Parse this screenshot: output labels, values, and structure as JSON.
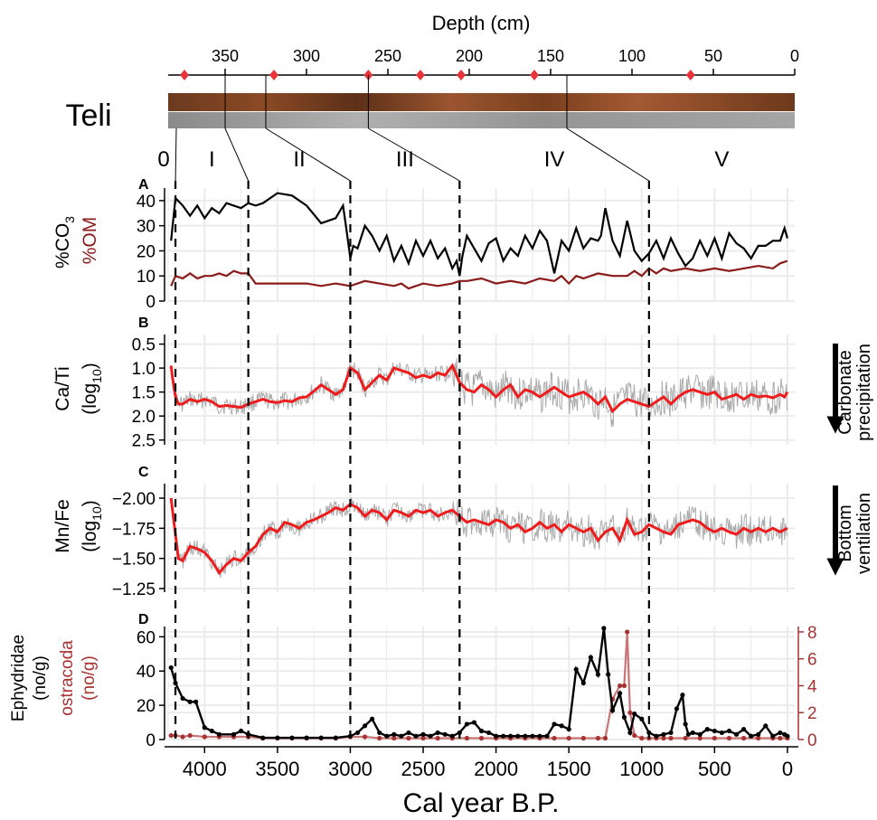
{
  "site_label": "Teli",
  "depth_axis": {
    "title": "Depth (cm)",
    "ticks": [
      350,
      300,
      250,
      200,
      150,
      100,
      50,
      0
    ],
    "min": 0,
    "max": 385
  },
  "core_samples_cm": [
    375,
    320,
    262,
    230,
    205,
    160,
    64
  ],
  "unit_boundaries_cm": [
    350,
    325,
    262,
    140
  ],
  "zones": [
    {
      "label": "0",
      "start": 4250,
      "end": 4200
    },
    {
      "label": "I",
      "start": 4200,
      "end": 3700
    },
    {
      "label": "II",
      "start": 3700,
      "end": 3000
    },
    {
      "label": "III",
      "start": 3000,
      "end": 2250
    },
    {
      "label": "IV",
      "start": 2250,
      "end": 950
    },
    {
      "label": "V",
      "start": 950,
      "end": -50
    }
  ],
  "boundaries_calbp": [
    4200,
    3700,
    3000,
    2250,
    950
  ],
  "x_axis": {
    "title": "Cal year B.P.",
    "ticks": [
      4000,
      3500,
      3000,
      2500,
      2000,
      1500,
      1000,
      500,
      0
    ],
    "min": -50,
    "max": 4250
  },
  "colors": {
    "black": "#000000",
    "dark_red": "#8b1a1a",
    "red": "#ee1c1c",
    "grey": "#aaaaaa",
    "ostracoda": "#c97575",
    "marker": "#e8333a"
  },
  "panels": {
    "A": {
      "letter": "A",
      "ylabel_1": "%CO",
      "ylabel_sub": "3",
      "ylabel_2": "%OM",
      "yticks": [
        0,
        10,
        20,
        30,
        40
      ],
      "ylim": [
        0,
        45
      ]
    },
    "B": {
      "letter": "B",
      "ylabel_1": "Ca/Ti",
      "ylabel_2": "(log",
      "ylabel_sub": "10",
      "ylabel_close": ")",
      "yticks": [
        0.5,
        1.0,
        1.5,
        2.0,
        2.5
      ],
      "ytick_labels": [
        "0.5",
        "1.0",
        "1.5",
        "2.0",
        "2.5"
      ],
      "ylim": [
        0.3,
        2.6
      ],
      "annotation_1": "Carbonate",
      "annotation_2": "precipitation"
    },
    "C": {
      "letter": "C",
      "ylabel_1": "Mn/Fe",
      "ylabel_2": "(log",
      "ylabel_sub": "10",
      "ylabel_close": ")",
      "yticks": [
        -2.0,
        -1.75,
        -1.5,
        -1.25
      ],
      "ytick_labels": [
        "−2.00",
        "−1.75",
        "−1.50",
        "−1.25"
      ],
      "ylim": [
        -2.12,
        -1.22
      ],
      "annotation_1": "Bottom",
      "annotation_2": "ventilation"
    },
    "D": {
      "letter": "D",
      "ylabel_1": "Ephydridae",
      "ylabel_2": "(no/g)",
      "ylabel_3": "ostracoda",
      "ylabel_4": "(no/g)",
      "yticks_left": [
        0,
        20,
        40,
        60
      ],
      "yticks_right": [
        0,
        2,
        4,
        6,
        8
      ],
      "ylim_left": [
        0,
        66
      ],
      "ylim_right": [
        0,
        8.4
      ]
    }
  },
  "chart_data": {
    "type": "line",
    "x_label": "Cal year B.P.",
    "series": [
      {
        "name": "%CO3",
        "panel": "A",
        "x": [
          4230,
          4200,
          4150,
          4100,
          4050,
          4000,
          3950,
          3900,
          3850,
          3800,
          3750,
          3700,
          3650,
          3600,
          3500,
          3400,
          3300,
          3200,
          3100,
          3050,
          3030,
          3000,
          2980,
          2950,
          2900,
          2850,
          2800,
          2750,
          2700,
          2650,
          2600,
          2550,
          2500,
          2450,
          2400,
          2350,
          2300,
          2270,
          2250,
          2230,
          2200,
          2150,
          2100,
          2050,
          2000,
          1950,
          1900,
          1850,
          1800,
          1750,
          1700,
          1650,
          1600,
          1550,
          1500,
          1450,
          1400,
          1350,
          1300,
          1280,
          1250,
          1200,
          1150,
          1100,
          1050,
          1000,
          950,
          900,
          850,
          800,
          750,
          700,
          650,
          600,
          550,
          500,
          450,
          400,
          350,
          300,
          250,
          200,
          150,
          100,
          50,
          20,
          0
        ],
        "y": [
          24,
          41,
          38,
          34,
          38,
          33,
          37,
          35,
          39,
          38,
          37,
          39,
          38,
          39,
          43,
          42,
          38,
          31,
          33,
          38,
          30,
          17,
          22,
          21,
          30,
          26,
          20,
          26,
          16,
          22,
          15,
          24,
          18,
          24,
          17,
          21,
          13,
          16,
          10,
          18,
          26,
          21,
          16,
          23,
          25,
          16,
          21,
          18,
          26,
          21,
          28,
          24,
          11,
          24,
          20,
          29,
          21,
          25,
          24,
          26,
          37,
          24,
          18,
          32,
          20,
          16,
          19,
          24,
          17,
          25,
          19,
          14,
          17,
          24,
          18,
          25,
          17,
          27,
          23,
          21,
          17,
          22,
          22,
          24,
          24,
          29,
          25
        ]
      },
      {
        "name": "%OM",
        "panel": "A",
        "x": [
          4230,
          4200,
          4150,
          4100,
          4050,
          4000,
          3950,
          3900,
          3850,
          3800,
          3750,
          3700,
          3650,
          3600,
          3500,
          3400,
          3300,
          3200,
          3100,
          3000,
          2950,
          2900,
          2800,
          2700,
          2650,
          2600,
          2500,
          2400,
          2300,
          2250,
          2200,
          2100,
          2000,
          1900,
          1800,
          1700,
          1600,
          1550,
          1500,
          1450,
          1400,
          1300,
          1200,
          1100,
          1050,
          1000,
          950,
          900,
          850,
          800,
          700,
          600,
          500,
          400,
          300,
          200,
          100,
          50,
          0
        ],
        "y": [
          6,
          10,
          9,
          11,
          9,
          10,
          10,
          11,
          10,
          12,
          11,
          11,
          7,
          7,
          7,
          7,
          7,
          6,
          7,
          6,
          7,
          8,
          7,
          6,
          7,
          5,
          7,
          6,
          7,
          8,
          8,
          9,
          7,
          8,
          7,
          9,
          8,
          10,
          7,
          10,
          9,
          11,
          10,
          10,
          12,
          10,
          13,
          11,
          13,
          12,
          13,
          12,
          13,
          12,
          13,
          14,
          13,
          15,
          16
        ]
      },
      {
        "name": "Ca/Ti smoothed",
        "panel": "B",
        "x": [
          4230,
          4220,
          4200,
          4180,
          4150,
          4100,
          4050,
          4000,
          3950,
          3900,
          3850,
          3800,
          3750,
          3700,
          3650,
          3600,
          3550,
          3500,
          3450,
          3400,
          3350,
          3300,
          3250,
          3200,
          3150,
          3100,
          3050,
          3000,
          2950,
          2900,
          2850,
          2800,
          2750,
          2700,
          2650,
          2600,
          2550,
          2500,
          2450,
          2400,
          2350,
          2300,
          2250,
          2200,
          2150,
          2100,
          2050,
          2000,
          1950,
          1900,
          1850,
          1800,
          1750,
          1700,
          1650,
          1600,
          1550,
          1500,
          1450,
          1400,
          1350,
          1300,
          1250,
          1200,
          1150,
          1100,
          1050,
          1000,
          950,
          900,
          850,
          800,
          750,
          700,
          650,
          600,
          550,
          500,
          450,
          400,
          350,
          300,
          250,
          200,
          150,
          100,
          50,
          20,
          0
        ],
        "y": [
          0.95,
          1.2,
          1.6,
          1.75,
          1.75,
          1.65,
          1.7,
          1.65,
          1.7,
          1.8,
          1.78,
          1.8,
          1.82,
          1.75,
          1.7,
          1.65,
          1.7,
          1.72,
          1.68,
          1.7,
          1.62,
          1.6,
          1.48,
          1.35,
          1.45,
          1.55,
          1.45,
          1.0,
          1.1,
          1.45,
          1.3,
          1.15,
          1.25,
          1.0,
          1.05,
          1.1,
          1.2,
          1.15,
          1.2,
          1.1,
          1.15,
          0.95,
          1.3,
          1.45,
          1.5,
          1.35,
          1.45,
          1.6,
          1.45,
          1.35,
          1.6,
          1.45,
          1.5,
          1.6,
          1.5,
          1.4,
          1.5,
          1.6,
          1.55,
          1.5,
          1.6,
          1.75,
          1.6,
          1.9,
          1.75,
          1.65,
          1.7,
          1.75,
          1.8,
          1.7,
          1.6,
          1.75,
          1.6,
          1.5,
          1.45,
          1.5,
          1.55,
          1.5,
          1.65,
          1.6,
          1.55,
          1.65,
          1.55,
          1.6,
          1.58,
          1.62,
          1.55,
          1.6,
          1.5
        ]
      },
      {
        "name": "Mn/Fe smoothed",
        "panel": "C",
        "x": [
          4230,
          4210,
          4180,
          4150,
          4100,
          4050,
          4000,
          3950,
          3900,
          3850,
          3800,
          3750,
          3700,
          3650,
          3600,
          3550,
          3500,
          3450,
          3400,
          3350,
          3300,
          3250,
          3200,
          3150,
          3100,
          3050,
          3000,
          2950,
          2900,
          2850,
          2800,
          2750,
          2700,
          2650,
          2600,
          2550,
          2500,
          2450,
          2400,
          2350,
          2300,
          2250,
          2200,
          2150,
          2100,
          2050,
          2000,
          1950,
          1900,
          1850,
          1800,
          1750,
          1700,
          1650,
          1600,
          1550,
          1500,
          1450,
          1400,
          1350,
          1300,
          1250,
          1200,
          1150,
          1100,
          1050,
          1000,
          950,
          900,
          850,
          800,
          750,
          700,
          650,
          600,
          550,
          500,
          450,
          400,
          350,
          300,
          250,
          200,
          150,
          100,
          50,
          0
        ],
        "y": [
          -2.0,
          -1.8,
          -1.5,
          -1.48,
          -1.6,
          -1.58,
          -1.55,
          -1.48,
          -1.38,
          -1.45,
          -1.5,
          -1.48,
          -1.55,
          -1.6,
          -1.7,
          -1.75,
          -1.72,
          -1.8,
          -1.78,
          -1.75,
          -1.8,
          -1.82,
          -1.85,
          -1.88,
          -1.92,
          -1.9,
          -1.95,
          -1.92,
          -1.85,
          -1.9,
          -1.88,
          -1.82,
          -1.9,
          -1.88,
          -1.85,
          -1.9,
          -1.88,
          -1.9,
          -1.85,
          -1.88,
          -1.9,
          -1.85,
          -1.8,
          -1.82,
          -1.8,
          -1.78,
          -1.82,
          -1.8,
          -1.75,
          -1.78,
          -1.72,
          -1.75,
          -1.8,
          -1.75,
          -1.78,
          -1.72,
          -1.78,
          -1.75,
          -1.72,
          -1.75,
          -1.65,
          -1.72,
          -1.75,
          -1.65,
          -1.82,
          -1.7,
          -1.72,
          -1.78,
          -1.75,
          -1.72,
          -1.7,
          -1.78,
          -1.8,
          -1.82,
          -1.8,
          -1.75,
          -1.72,
          -1.75,
          -1.72,
          -1.7,
          -1.75,
          -1.72,
          -1.75,
          -1.72,
          -1.75,
          -1.72,
          -1.75
        ]
      },
      {
        "name": "Ephydridae",
        "panel": "D",
        "x": [
          4230,
          4200,
          4150,
          4100,
          4060,
          4000,
          3950,
          3900,
          3800,
          3750,
          3700,
          3600,
          3500,
          3400,
          3300,
          3200,
          3100,
          3000,
          2950,
          2900,
          2850,
          2800,
          2750,
          2700,
          2650,
          2600,
          2550,
          2500,
          2450,
          2400,
          2350,
          2300,
          2250,
          2200,
          2150,
          2100,
          2050,
          2000,
          1950,
          1900,
          1850,
          1800,
          1750,
          1700,
          1650,
          1600,
          1550,
          1500,
          1450,
          1400,
          1350,
          1300,
          1260,
          1230,
          1200,
          1150,
          1120,
          1080,
          1050,
          1000,
          950,
          900,
          850,
          800,
          760,
          720,
          700,
          680,
          650,
          600,
          550,
          500,
          450,
          400,
          350,
          300,
          250,
          200,
          150,
          100,
          50,
          20,
          0
        ],
        "y": [
          42,
          33,
          24,
          22,
          22,
          7,
          5,
          3,
          3,
          5,
          3,
          1,
          1,
          1,
          1,
          1,
          1,
          2,
          4,
          8,
          12,
          4,
          2,
          3,
          2,
          4,
          2,
          3,
          2,
          4,
          3,
          2,
          4,
          9,
          10,
          5,
          4,
          2,
          2,
          2,
          2,
          2,
          2,
          2,
          2,
          9,
          8,
          6,
          41,
          33,
          48,
          38,
          65,
          38,
          17,
          27,
          13,
          4,
          15,
          12,
          4,
          2,
          3,
          4,
          18,
          26,
          9,
          3,
          4,
          3,
          6,
          5,
          4,
          5,
          3,
          6,
          2,
          3,
          8,
          2,
          4,
          3,
          2
        ]
      },
      {
        "name": "ostracoda",
        "panel": "D",
        "x": [
          4230,
          4200,
          4150,
          4100,
          4000,
          3900,
          3800,
          3700,
          3600,
          3500,
          3400,
          3300,
          3200,
          3100,
          3000,
          2900,
          2800,
          2700,
          2600,
          2500,
          2400,
          2300,
          2200,
          2100,
          2000,
          1900,
          1800,
          1700,
          1600,
          1500,
          1400,
          1300,
          1250,
          1200,
          1150,
          1120,
          1100,
          1080,
          1050,
          1000,
          950,
          900,
          850,
          800,
          700,
          600,
          500,
          400,
          300,
          200,
          100,
          50,
          0
        ],
        "y": [
          0.3,
          0.3,
          0.2,
          0.3,
          0.2,
          0.2,
          0.2,
          0.2,
          0.1,
          0.1,
          0.1,
          0.1,
          0.1,
          0.1,
          0.2,
          0.2,
          0.1,
          0.1,
          0.1,
          0.1,
          0.1,
          0.1,
          0.1,
          0.1,
          0.1,
          0.1,
          0.1,
          0.1,
          0.1,
          0.1,
          0.1,
          0.1,
          0.1,
          3.0,
          4.0,
          4.0,
          8.0,
          2.0,
          0.3,
          0.1,
          0.1,
          0.1,
          0.1,
          0.1,
          0.1,
          0.1,
          0.1,
          0.1,
          0.1,
          0.1,
          0.1,
          0.1,
          0.1
        ]
      }
    ]
  }
}
